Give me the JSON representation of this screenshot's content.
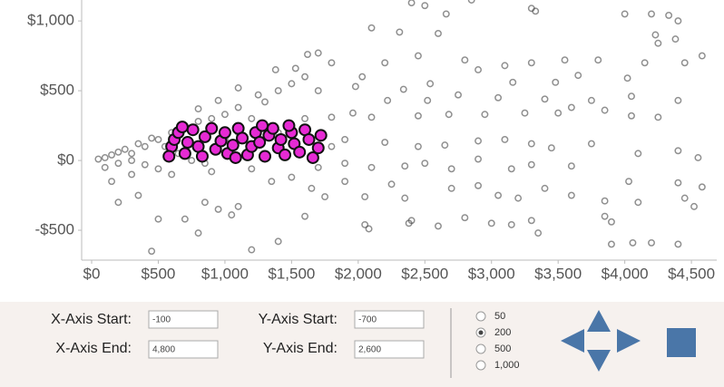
{
  "chart_data": {
    "type": "scatter",
    "xlim": [
      -75,
      4690
    ],
    "ylim": [
      -714,
      1150
    ],
    "xticks": [
      {
        "value": 0,
        "label": "$0"
      },
      {
        "value": 500,
        "label": "$500"
      },
      {
        "value": 1000,
        "label": "$1,000"
      },
      {
        "value": 1500,
        "label": "$1,500"
      },
      {
        "value": 2000,
        "label": "$2,000"
      },
      {
        "value": 2500,
        "label": "$2,500"
      },
      {
        "value": 3000,
        "label": "$3,000"
      },
      {
        "value": 3500,
        "label": "$3,500"
      },
      {
        "value": 4000,
        "label": "$4,000"
      },
      {
        "value": 4500,
        "label": "$4,500"
      }
    ],
    "yticks": [
      {
        "value": -500,
        "label": "-$500"
      },
      {
        "value": 0,
        "label": "$0"
      },
      {
        "value": 500,
        "label": "$500"
      },
      {
        "value": 1000,
        "label": "$1,000"
      }
    ],
    "grid": false,
    "series": [
      {
        "color": "#444444",
        "x": [
          2400,
          2500,
          2850,
          2660,
          3300,
          3330,
          4000,
          4200,
          4330,
          4400,
          2100,
          2310,
          2600,
          4230,
          4380,
          4250,
          1620,
          1700,
          1530,
          1380,
          1800,
          2200,
          2450,
          2800,
          3100,
          3300,
          3550,
          3800,
          4150,
          4450,
          4580,
          4020,
          3650,
          3480,
          3160,
          2900,
          2540,
          2340,
          2030,
          1980,
          1100,
          1250,
          950,
          800,
          4050,
          4400,
          3750,
          3400,
          3050,
          2750,
          2520,
          2220,
          1960,
          1800,
          2100,
          2450,
          2680,
          2950,
          3250,
          3500,
          3600,
          3850,
          4050,
          4250,
          1900,
          2200,
          2450,
          2650,
          2900,
          3100,
          3300,
          3450,
          3750,
          4100,
          4400,
          4550,
          1900,
          2100,
          2350,
          2500,
          2700,
          2900,
          3150,
          3300,
          3600,
          4030,
          4400,
          4580,
          1200,
          1350,
          1500,
          1650,
          1900,
          2050,
          2250,
          2350,
          2700,
          2900,
          3050,
          3200,
          3400,
          3600,
          3850,
          4100,
          4450,
          4520,
          2050,
          2080,
          2380,
          2400,
          2800,
          3000,
          3150,
          3300,
          3350,
          3850,
          3900,
          4200,
          4060,
          3900,
          4400,
          2600,
          1100,
          1050,
          950,
          850,
          700,
          500,
          450,
          1200,
          1400,
          1600,
          1750,
          800,
          350,
          200,
          150,
          300,
          600,
          900,
          100,
          200,
          300,
          400,
          500,
          600,
          700,
          800,
          900,
          1000,
          1100,
          1300,
          1400,
          1500,
          1600,
          1700,
          1200,
          1000,
          1100,
          1400,
          1600,
          1800,
          1700,
          50,
          100,
          150,
          200,
          250,
          350,
          450,
          550,
          650,
          750,
          850,
          400,
          500,
          300
        ],
        "values": [
          1130,
          1110,
          1150,
          1050,
          1090,
          1070,
          1050,
          1050,
          1040,
          1000,
          950,
          920,
          910,
          900,
          870,
          840,
          760,
          770,
          660,
          650,
          700,
          700,
          750,
          720,
          680,
          700,
          720,
          720,
          700,
          700,
          750,
          590,
          610,
          560,
          560,
          650,
          550,
          510,
          600,
          530,
          520,
          470,
          430,
          370,
          460,
          430,
          430,
          440,
          450,
          470,
          430,
          430,
          340,
          310,
          310,
          320,
          330,
          330,
          340,
          340,
          380,
          360,
          320,
          310,
          150,
          130,
          100,
          110,
          140,
          150,
          120,
          90,
          120,
          50,
          70,
          20,
          -20,
          -50,
          -40,
          -20,
          -60,
          10,
          -60,
          -30,
          -40,
          -150,
          -160,
          -190,
          -60,
          -150,
          -120,
          -200,
          -150,
          -260,
          -170,
          -270,
          -200,
          -180,
          -250,
          -270,
          -200,
          -250,
          -290,
          -300,
          -270,
          -330,
          -460,
          -490,
          -450,
          -430,
          -410,
          -450,
          -460,
          -430,
          -520,
          -400,
          -440,
          -590,
          -590,
          -600,
          -600,
          -470,
          -330,
          -390,
          -350,
          -300,
          -420,
          -420,
          -650,
          -640,
          -580,
          -400,
          -260,
          -520,
          -250,
          -300,
          -150,
          -100,
          -100,
          -80,
          -50,
          -20,
          50,
          100,
          150,
          200,
          250,
          280,
          300,
          330,
          380,
          420,
          500,
          550,
          600,
          500,
          300,
          150,
          200,
          200,
          300,
          100,
          -50,
          10,
          20,
          40,
          60,
          80,
          120,
          160,
          100,
          50,
          0,
          -20,
          -30,
          -60,
          0
        ]
      },
      {
        "color": "#e62ad4",
        "x": [
          600,
          620,
          650,
          700,
          720,
          760,
          800,
          830,
          850,
          900,
          930,
          970,
          1000,
          1020,
          1060,
          1100,
          1130,
          1170,
          1200,
          1230,
          1260,
          1300,
          1330,
          1360,
          1400,
          1420,
          1450,
          1500,
          1520,
          1560,
          1600,
          1630,
          1660,
          1700,
          1720,
          580,
          680,
          1080,
          1280,
          1480
        ],
        "values": [
          100,
          150,
          200,
          50,
          130,
          220,
          100,
          30,
          170,
          230,
          80,
          140,
          200,
          50,
          110,
          230,
          160,
          40,
          100,
          200,
          130,
          30,
          180,
          230,
          90,
          150,
          40,
          200,
          120,
          60,
          220,
          150,
          20,
          90,
          180,
          30,
          240,
          20,
          250,
          250
        ]
      }
    ]
  },
  "controls": {
    "x_start_label": "X-Axis Start:",
    "x_start": "-100",
    "x_end_label": "X-Axis End:",
    "x_end": "4,800",
    "y_start_label": "Y-Axis Start:",
    "y_start": "-700",
    "y_end_label": "Y-Axis End:",
    "y_end": "2,600",
    "radio_options": [
      "50",
      "200",
      "500",
      "1,000"
    ],
    "radio_selected": 1
  }
}
